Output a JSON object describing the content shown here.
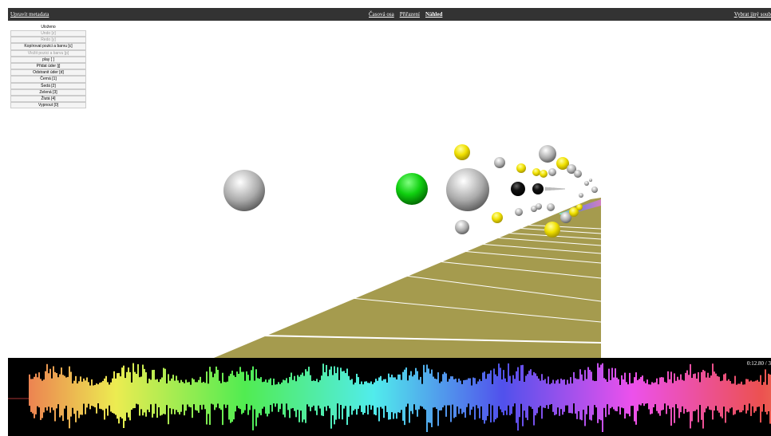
{
  "top_bar": {
    "left": "Upravit metadata",
    "tabs": [
      {
        "label": "Časová osa",
        "active": false
      },
      {
        "label": "Přiřazení",
        "active": false
      },
      {
        "label": "Náhled",
        "active": true
      }
    ],
    "right": "Vybrat jiný soub"
  },
  "panel": {
    "status": "Uloženo",
    "buttons": [
      {
        "label": "Undo [z]",
        "disabled": true
      },
      {
        "label": "Redo [y]",
        "disabled": true
      },
      {
        "label": "Kopírovat pozici a barvu [c]",
        "disabled": false
      },
      {
        "label": "Vložit pozici a barvu [p]",
        "disabled": true
      },
      {
        "label": "play [ ]",
        "disabled": false
      },
      {
        "label": "Přidat úder [j]",
        "disabled": false
      },
      {
        "label": "Odstranit úder [d]",
        "disabled": false
      },
      {
        "label": "Černá [1]",
        "disabled": false
      },
      {
        "label": "Šedá [2]",
        "disabled": false
      },
      {
        "label": "Zelená [3]",
        "disabled": false
      },
      {
        "label": "Žlutá [4]",
        "disabled": false
      },
      {
        "label": "Vypnout [0]",
        "disabled": false
      }
    ]
  },
  "waveform": {
    "time": "0:12.80 / 3"
  }
}
